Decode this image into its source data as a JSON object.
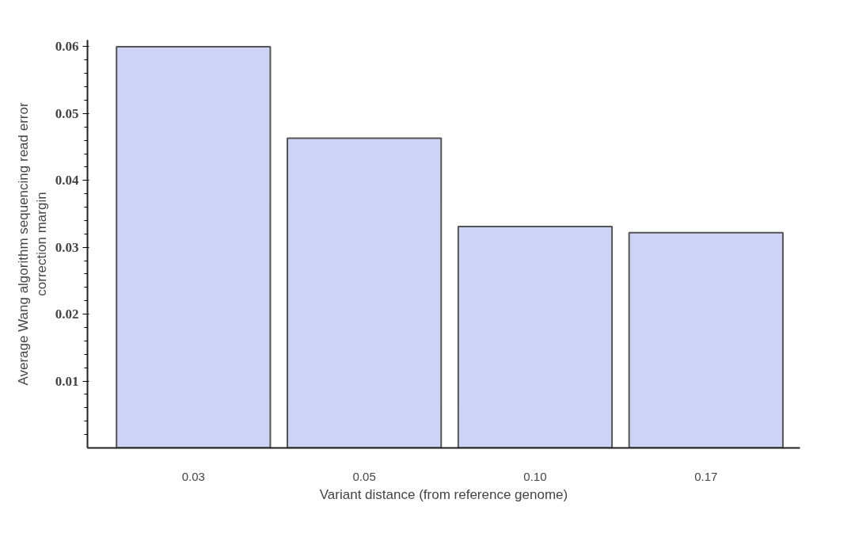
{
  "chart_data": {
    "type": "bar",
    "xlabel": "Variant distance (from reference genome)",
    "ylabel": "Average Wang algorithm sequencing read error correction margin",
    "categories": [
      "0.03",
      "0.05",
      "0.10",
      "0.17"
    ],
    "values": [
      0.06,
      0.0463,
      0.0331,
      0.0322
    ],
    "color": "#ccd3f5",
    "ylim": [
      0,
      0.061
    ],
    "yticks": [
      0.01,
      0.02,
      0.03,
      0.04,
      0.05,
      0.06
    ],
    "grid": false
  }
}
